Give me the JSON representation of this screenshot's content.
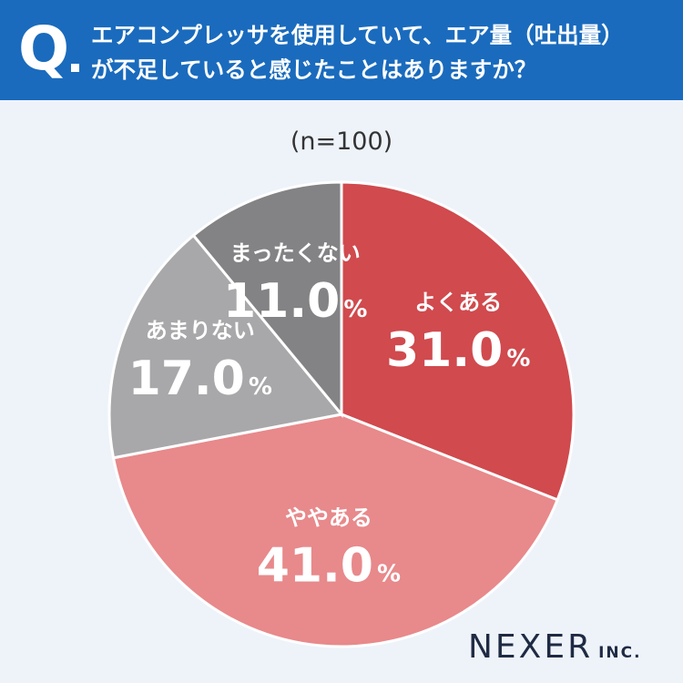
{
  "header": {
    "q_letter": "Q",
    "question": "エアコンプレッサを使用していて、エア量（吐出量）\nが不足していると感じたことはありますか？"
  },
  "sample_size": "(n=100)",
  "brand": {
    "name": "NEXER",
    "suffix": "INC."
  },
  "colors": {
    "header_bg": "#1a6bbd",
    "slice_1": "#d04a4e",
    "slice_2": "#e8898b",
    "slice_3": "#a8a8aa",
    "slice_4": "#838385"
  },
  "chart_data": {
    "type": "pie",
    "unit": "%",
    "slices": [
      {
        "label": "よくある",
        "value": 31.0,
        "value_text": "31.0",
        "color": "#d04a4e"
      },
      {
        "label": "ややある",
        "value": 41.0,
        "value_text": "41.0",
        "color": "#e8898b"
      },
      {
        "label": "あまりない",
        "value": 17.0,
        "value_text": "17.0",
        "color": "#a8a8aa"
      },
      {
        "label": "まったくない",
        "value": 11.0,
        "value_text": "11.0",
        "color": "#838385"
      }
    ]
  }
}
